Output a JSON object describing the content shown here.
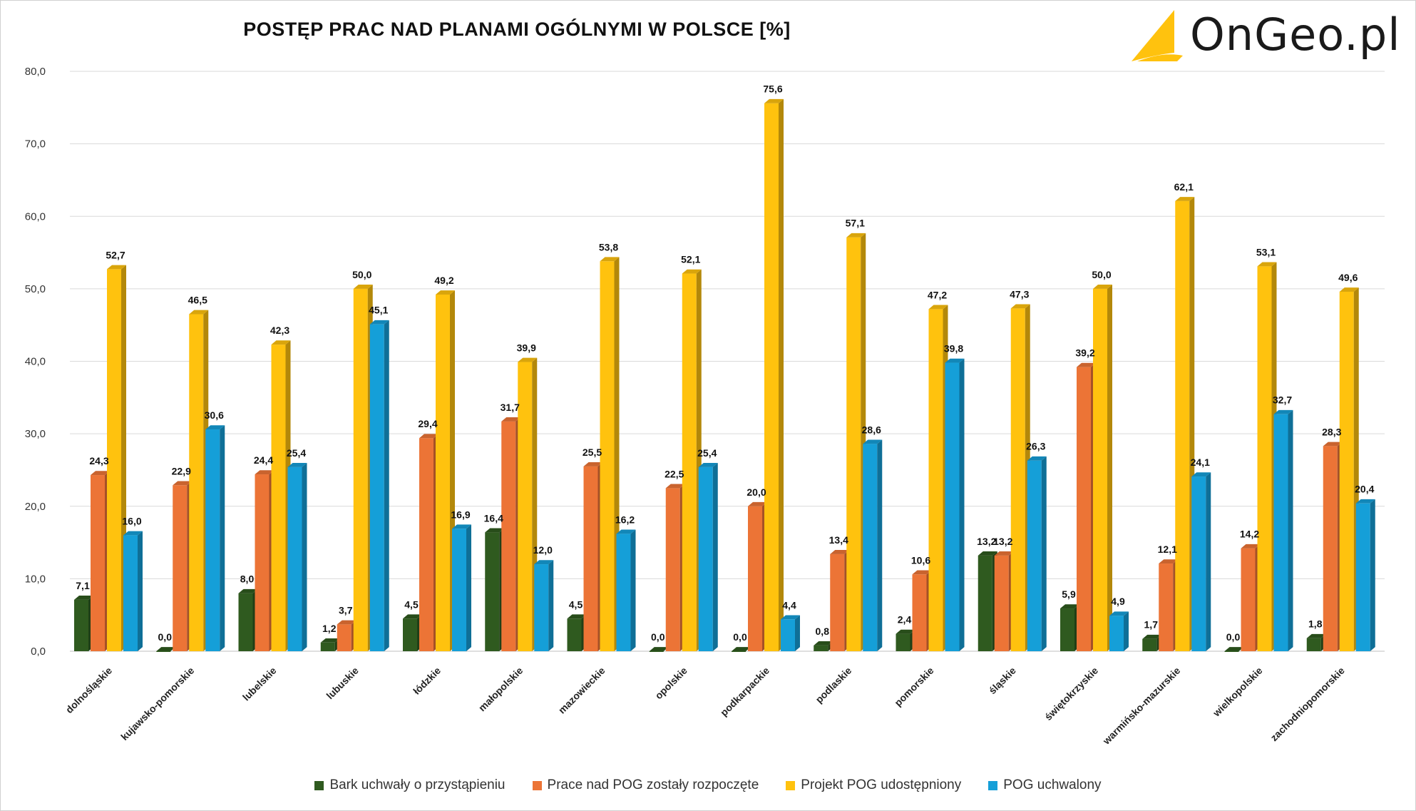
{
  "chart_data": {
    "type": "bar",
    "title": "POSTĘP PRAC NAD PLANAMI OGÓLNYMI W POLSCE [%]",
    "ylim": [
      0,
      80
    ],
    "yticks": [
      "0,0",
      "10,0",
      "20,0",
      "30,0",
      "40,0",
      "50,0",
      "60,0",
      "70,0",
      "80,0"
    ],
    "grid": true,
    "legend_position": "bottom",
    "categories": [
      "dolnośląskie",
      "kujawsko-pomorskie",
      "lubelskie",
      "lubuskie",
      "łódzkie",
      "małopolskie",
      "mazowieckie",
      "opolskie",
      "podkarpackie",
      "podlaskie",
      "pomorskie",
      "śląskie",
      "świętokrzyskie",
      "warmińsko-mazurskie",
      "wielkopolskie",
      "zachodniopomorskie"
    ],
    "series": [
      {
        "name": "Bark uchwały o przystąpieniu",
        "color": "#2f5a1f",
        "values": [
          7.1,
          0.0,
          8.0,
          1.2,
          4.5,
          16.4,
          4.5,
          0.0,
          0.0,
          0.8,
          2.4,
          13.2,
          5.9,
          1.7,
          0.0,
          1.8
        ],
        "labels": [
          "7,1",
          "0,0",
          "8,0",
          "1,2",
          "4,5",
          "16,4",
          "4,5",
          "0,0",
          "0,0",
          "0,8",
          "2,4",
          "13,2",
          "5,9",
          "1,7",
          "0,0",
          "1,8"
        ]
      },
      {
        "name": "Prace nad POG zostały rozpoczęte",
        "color": "#ec7436",
        "values": [
          24.3,
          22.9,
          24.4,
          3.7,
          29.4,
          31.7,
          25.5,
          22.5,
          20.0,
          13.4,
          10.6,
          13.2,
          39.2,
          12.1,
          14.2,
          28.3
        ],
        "labels": [
          "24,3",
          "22,9",
          "24,4",
          "3,7",
          "29,4",
          "31,7",
          "25,5",
          "22,5",
          "20,0",
          "13,4",
          "10,6",
          "13,2",
          "39,2",
          "12,1",
          "14,2",
          "28,3"
        ]
      },
      {
        "name": "Projekt POG udostępniony",
        "color": "#ffc20e",
        "values": [
          52.7,
          46.5,
          42.3,
          50.0,
          49.2,
          39.9,
          53.8,
          52.1,
          75.6,
          57.1,
          47.2,
          47.3,
          50.0,
          62.1,
          53.1,
          49.6
        ],
        "labels": [
          "52,7",
          "46,5",
          "42,3",
          "50,0",
          "49,2",
          "39,9",
          "53,8",
          "52,1",
          "75,6",
          "57,1",
          "47,2",
          "47,3",
          "50,0",
          "62,1",
          "53,1",
          "49,6"
        ]
      },
      {
        "name": "POG uchwalony",
        "color": "#159fd8",
        "values": [
          16.0,
          30.6,
          25.4,
          45.1,
          16.9,
          12.0,
          16.2,
          25.4,
          4.4,
          28.6,
          39.8,
          26.3,
          4.9,
          24.1,
          32.7,
          20.4
        ],
        "labels": [
          "16,0",
          "30,6",
          "25,4",
          "45,1",
          "16,9",
          "12,0",
          "16,2",
          "25,4",
          "4,4",
          "28,6",
          "39,8",
          "26,3",
          "4,9",
          "24,1",
          "32,7",
          "20,4"
        ]
      }
    ]
  },
  "logo": {
    "text": "OnGeo.pl",
    "accent": "#ffc20e"
  }
}
